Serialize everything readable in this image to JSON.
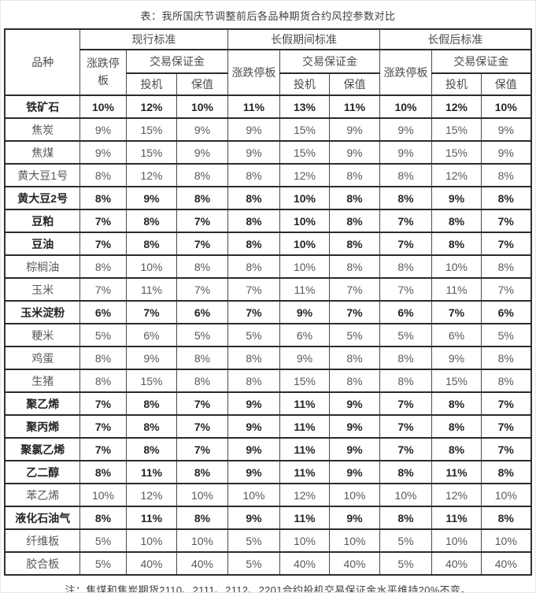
{
  "title": "表：我所国庆节调整前后各品种期货合约风控参数对比",
  "note": "注：焦煤和焦炭期货2110、2111、2112、2201合约投机交易保证金水平维持20%不变。",
  "table": {
    "variety_header": "品种",
    "price_limit_header": "涨跌停板",
    "margin_header": "交易保证金",
    "spec_header": "投机",
    "hedge_header": "保值",
    "groups": [
      {
        "label": "现行标准"
      },
      {
        "label": "长假期间标准"
      },
      {
        "label": "长假后标准"
      }
    ],
    "rows": [
      {
        "variety": "铁矿石",
        "bold": true,
        "values": [
          "10%",
          "12%",
          "10%",
          "11%",
          "13%",
          "11%",
          "10%",
          "12%",
          "10%"
        ]
      },
      {
        "variety": "焦炭",
        "bold": false,
        "values": [
          "9%",
          "15%",
          "9%",
          "9%",
          "15%",
          "9%",
          "9%",
          "15%",
          "9%"
        ]
      },
      {
        "variety": "焦煤",
        "bold": false,
        "values": [
          "9%",
          "15%",
          "9%",
          "9%",
          "15%",
          "9%",
          "9%",
          "15%",
          "9%"
        ]
      },
      {
        "variety": "黄大豆1号",
        "bold": false,
        "values": [
          "8%",
          "12%",
          "8%",
          "8%",
          "12%",
          "8%",
          "8%",
          "12%",
          "8%"
        ]
      },
      {
        "variety": "黄大豆2号",
        "bold": true,
        "values": [
          "8%",
          "9%",
          "8%",
          "8%",
          "10%",
          "8%",
          "8%",
          "9%",
          "8%"
        ]
      },
      {
        "variety": "豆粕",
        "bold": true,
        "values": [
          "7%",
          "8%",
          "7%",
          "8%",
          "10%",
          "8%",
          "7%",
          "8%",
          "7%"
        ]
      },
      {
        "variety": "豆油",
        "bold": true,
        "values": [
          "7%",
          "8%",
          "7%",
          "8%",
          "10%",
          "8%",
          "7%",
          "8%",
          "7%"
        ]
      },
      {
        "variety": "棕榈油",
        "bold": false,
        "values": [
          "8%",
          "10%",
          "8%",
          "8%",
          "10%",
          "8%",
          "8%",
          "10%",
          "8%"
        ]
      },
      {
        "variety": "玉米",
        "bold": false,
        "values": [
          "7%",
          "11%",
          "7%",
          "7%",
          "11%",
          "7%",
          "7%",
          "11%",
          "7%"
        ]
      },
      {
        "variety": "玉米淀粉",
        "bold": true,
        "values": [
          "6%",
          "7%",
          "6%",
          "7%",
          "9%",
          "7%",
          "6%",
          "7%",
          "6%"
        ]
      },
      {
        "variety": "粳米",
        "bold": false,
        "values": [
          "5%",
          "6%",
          "5%",
          "5%",
          "6%",
          "5%",
          "5%",
          "6%",
          "5%"
        ]
      },
      {
        "variety": "鸡蛋",
        "bold": false,
        "values": [
          "8%",
          "9%",
          "8%",
          "8%",
          "9%",
          "8%",
          "8%",
          "9%",
          "8%"
        ]
      },
      {
        "variety": "生猪",
        "bold": false,
        "values": [
          "8%",
          "15%",
          "8%",
          "8%",
          "15%",
          "8%",
          "8%",
          "15%",
          "8%"
        ]
      },
      {
        "variety": "聚乙烯",
        "bold": true,
        "values": [
          "7%",
          "8%",
          "7%",
          "9%",
          "11%",
          "9%",
          "7%",
          "8%",
          "7%"
        ]
      },
      {
        "variety": "聚丙烯",
        "bold": true,
        "values": [
          "7%",
          "8%",
          "7%",
          "9%",
          "11%",
          "9%",
          "7%",
          "8%",
          "7%"
        ]
      },
      {
        "variety": "聚氯乙烯",
        "bold": true,
        "values": [
          "7%",
          "8%",
          "7%",
          "9%",
          "11%",
          "9%",
          "7%",
          "8%",
          "7%"
        ]
      },
      {
        "variety": "乙二醇",
        "bold": true,
        "values": [
          "8%",
          "11%",
          "8%",
          "9%",
          "11%",
          "9%",
          "8%",
          "11%",
          "8%"
        ]
      },
      {
        "variety": "苯乙烯",
        "bold": false,
        "values": [
          "10%",
          "12%",
          "10%",
          "10%",
          "12%",
          "10%",
          "10%",
          "12%",
          "10%"
        ]
      },
      {
        "variety": "液化石油气",
        "bold": true,
        "values": [
          "8%",
          "11%",
          "8%",
          "9%",
          "11%",
          "9%",
          "8%",
          "11%",
          "8%"
        ]
      },
      {
        "variety": "纤维板",
        "bold": false,
        "values": [
          "5%",
          "10%",
          "10%",
          "5%",
          "10%",
          "10%",
          "5%",
          "10%",
          "10%"
        ]
      },
      {
        "variety": "胶合板",
        "bold": false,
        "values": [
          "5%",
          "40%",
          "40%",
          "5%",
          "40%",
          "40%",
          "5%",
          "40%",
          "40%"
        ]
      }
    ]
  }
}
